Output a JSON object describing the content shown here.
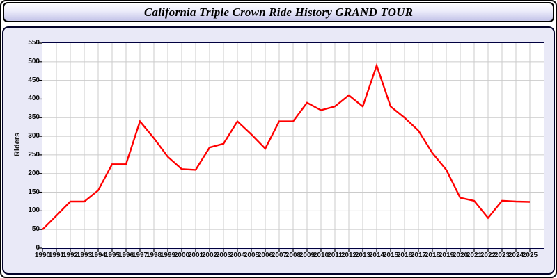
{
  "window": {
    "title": "California Triple Crown Ride History GRAND TOUR"
  },
  "chart_data": {
    "type": "line",
    "title": "California Triple Crown Ride History GRAND TOUR",
    "ylabel": "Riders",
    "xlabel": "",
    "x": [
      1990,
      1991,
      1992,
      1993,
      1994,
      1995,
      1996,
      1997,
      1998,
      1999,
      2000,
      2001,
      2002,
      2003,
      2004,
      2005,
      2006,
      2007,
      2008,
      2009,
      2010,
      2011,
      2012,
      2013,
      2014,
      2015,
      2016,
      2017,
      2018,
      2019,
      2020,
      2021,
      2022,
      2023,
      2024,
      2025
    ],
    "values": [
      50,
      87,
      125,
      125,
      155,
      225,
      225,
      340,
      295,
      245,
      212,
      210,
      270,
      280,
      340,
      305,
      267,
      340,
      340,
      390,
      370,
      380,
      410,
      380,
      490,
      380,
      350,
      315,
      255,
      210,
      135,
      127,
      81,
      127,
      125,
      124
    ],
    "series_name": "Riders",
    "xlim": [
      1990,
      2026
    ],
    "ylim": [
      0,
      550
    ],
    "ytick_step": 50,
    "grid": true,
    "legend": "none",
    "line_color": "#ff0000",
    "grid_color": "#cbcbcb",
    "frame_color": "#000040",
    "plot_bg": "#ffffff",
    "panel_bg": "#e9e9f7"
  }
}
